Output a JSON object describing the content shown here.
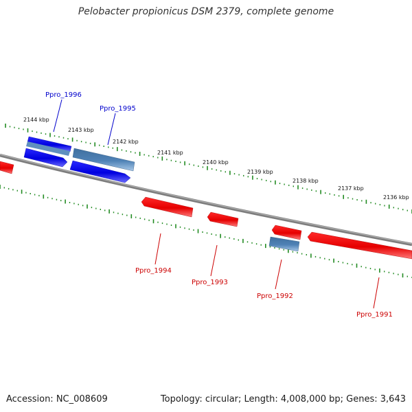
{
  "title": "Pelobacter propionicus DSM 2379, complete genome",
  "footer": {
    "accession": "Accession: NC_008609",
    "topology": "Topology: circular; Length: 4,008,000 bp; Genes: 3,643"
  },
  "colors": {
    "backbone": "#7f7f7f",
    "tick_mark": "#228b22",
    "forward_gene": "#0000ee",
    "forward_gene_light": "#4a7fb5",
    "reverse_gene": "#ee0000",
    "forward_label": "#0000cc",
    "reverse_label": "#cc0000"
  },
  "scale_labels": [
    "2144 kbp",
    "2143 kbp",
    "2142 kbp",
    "2141 kbp",
    "2140 kbp",
    "2139 kbp",
    "2138 kbp",
    "2137 kbp",
    "2136 kbp"
  ],
  "gene_labels": {
    "ppro_1996": "Ppro_1996",
    "ppro_1995": "Ppro_1995",
    "ppro_1994": "Ppro_1994",
    "ppro_1993": "Ppro_1993",
    "ppro_1992": "Ppro_1992",
    "ppro_1991": "Ppro_1991"
  }
}
